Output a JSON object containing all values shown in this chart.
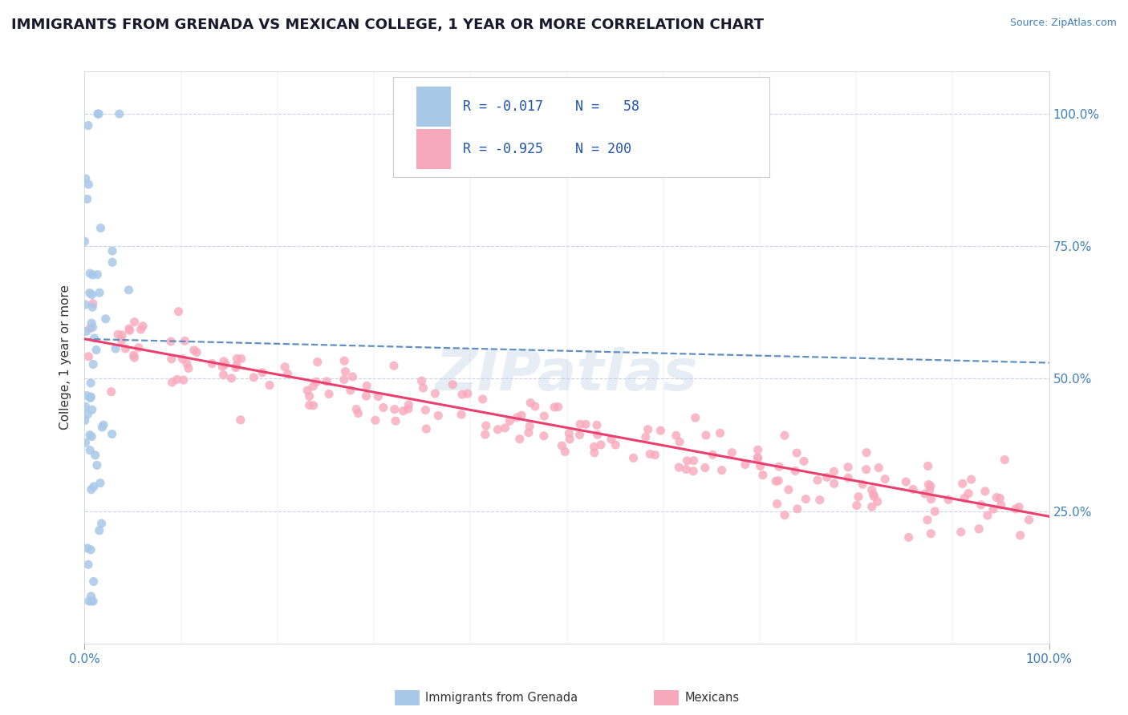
{
  "title": "IMMIGRANTS FROM GRENADA VS MEXICAN COLLEGE, 1 YEAR OR MORE CORRELATION CHART",
  "source_text": "Source: ZipAtlas.com",
  "ylabel": "College, 1 year or more",
  "xlim": [
    0.0,
    1.0
  ],
  "ylim": [
    0.0,
    1.08
  ],
  "color_grenada": "#a8c8e8",
  "color_mexican": "#f8a8bc",
  "color_grenada_line": "#6090c0",
  "color_mexican_line": "#e84070",
  "grenada_R": -0.017,
  "grenada_N": 58,
  "mexican_R": -0.925,
  "mexican_N": 200,
  "background_color": "#ffffff",
  "grid_color": "#c8d4e8",
  "title_fontsize": 13,
  "axis_label_fontsize": 11,
  "tick_fontsize": 11,
  "watermark_text": "ZIPatlas",
  "watermark_color": "#b8cce4",
  "watermark_fontsize": 52,
  "watermark_alpha": 0.35
}
